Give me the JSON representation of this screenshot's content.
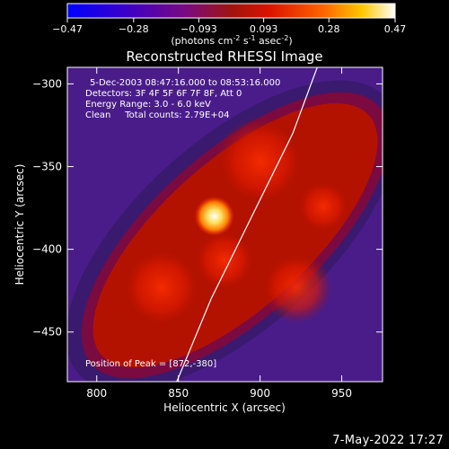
{
  "chart_data": {
    "type": "heatmap",
    "title": "Reconstructed RHESSI Image",
    "xlabel": "Heliocentric X (arcsec)",
    "ylabel": "Heliocentric Y (arcsec)",
    "xlim": [
      782,
      975
    ],
    "ylim": [
      -480,
      -290
    ],
    "x_ticks": [
      800,
      850,
      900,
      950
    ],
    "y_ticks": [
      -300,
      -350,
      -400,
      -450
    ],
    "colorbar": {
      "range": [
        -0.47,
        0.47
      ],
      "tick_values": [
        -0.47,
        -0.28,
        -0.093,
        0.093,
        0.28,
        0.47
      ],
      "tick_labels": [
        "-0.47",
        "-0.28",
        "-0.093",
        "0.093",
        "0.28",
        "0.47"
      ],
      "units_label": "(photons cm",
      "units_exp1": "-2",
      "units_mid": " s",
      "units_exp2": "-1",
      "units_mid2": " asec",
      "units_exp3": "-2",
      "units_close": ")"
    },
    "annotations": [
      "5-Dec-2003 08:47:16.000 to 08:53:16.000",
      "Detectors: 3F 4F 5F 6F 7F 8F, Att 0",
      "Energy Range: 3.0 - 6.0 keV",
      "Clean     Total counts: 2.79E+04"
    ],
    "peak_label": "Position of Peak = [872,-380]",
    "peak": {
      "x": 872,
      "y": -380
    },
    "limb_curve": [
      [
        849,
        -480
      ],
      [
        870,
        -430
      ],
      [
        890,
        -390
      ],
      [
        905,
        -360
      ],
      [
        920,
        -330
      ],
      [
        935,
        -290
      ]
    ],
    "colors": {
      "colormap_stops": [
        "#0000ff",
        "#3b00c8",
        "#7a0a82",
        "#a0140f",
        "#dc1400",
        "#ff6400",
        "#ffc800",
        "#ffffff"
      ]
    }
  },
  "footer": {
    "date": "7-May-2022 17:27"
  }
}
